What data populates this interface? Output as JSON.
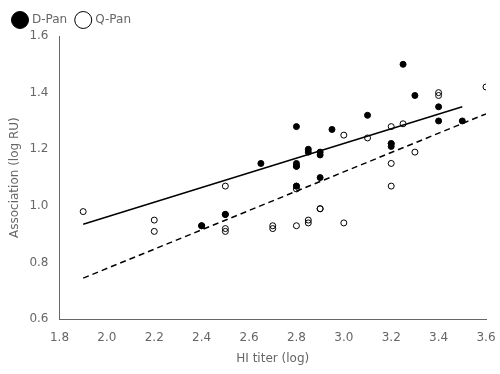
{
  "chart_data": {
    "type": "scatter",
    "xlabel": "HI titer (log)",
    "ylabel": "Association (log RU)",
    "xlim": [
      1.8,
      3.6
    ],
    "ylim": [
      0.6,
      1.6
    ],
    "xticks": [
      1.8,
      {
        "value": 2.0,
        "label": "2.0"
      },
      2.2,
      2.4,
      2.6,
      2.8,
      {
        "value": 3.0,
        "label": "3.0"
      },
      3.2,
      3.4,
      3.6
    ],
    "yticks": [
      0.6,
      0.8,
      {
        "value": 1.0,
        "label": "1.0"
      },
      1.2,
      1.4,
      1.6
    ],
    "grid": false,
    "legend": "upper left",
    "series": [
      {
        "name": "D-Pan",
        "color": "#000000",
        "marker": "circle",
        "x": [
          2.4,
          2.4,
          2.5,
          2.5,
          2.65,
          2.8,
          2.8,
          2.8,
          2.8,
          2.8,
          2.85,
          2.85,
          2.9,
          2.9,
          2.9,
          2.95,
          3.1,
          3.2,
          3.2,
          3.25,
          3.3,
          3.4,
          3.4,
          3.5
        ],
        "values": [
          0.93,
          0.93,
          0.97,
          0.97,
          1.15,
          1.28,
          1.15,
          1.14,
          1.14,
          1.07,
          1.2,
          1.19,
          1.18,
          1.19,
          1.1,
          1.27,
          1.32,
          1.22,
          1.21,
          1.5,
          1.39,
          1.35,
          1.3,
          1.3
        ]
      },
      {
        "name": "Q-Pan",
        "color": "#000000",
        "marker": "open_circle",
        "x": [
          1.9,
          2.2,
          2.2,
          2.5,
          2.5,
          2.5,
          2.7,
          2.7,
          2.8,
          2.8,
          2.8,
          2.85,
          2.85,
          2.9,
          2.9,
          3.0,
          3.0,
          3.1,
          3.2,
          3.2,
          3.2,
          3.2,
          3.25,
          3.3,
          3.4,
          3.4,
          3.6
        ],
        "values": [
          0.98,
          0.95,
          0.91,
          1.07,
          0.92,
          0.91,
          0.93,
          0.92,
          1.07,
          1.06,
          0.93,
          0.95,
          0.94,
          0.99,
          0.99,
          0.94,
          1.25,
          1.24,
          1.28,
          1.22,
          1.15,
          1.07,
          1.29,
          1.19,
          1.39,
          1.4,
          1.42
        ]
      },
      {
        "type": "line",
        "color": "#000000",
        "line_style": "solid",
        "x": [
          1.9,
          3.5
        ],
        "values": [
          0.935,
          1.35
        ]
      },
      {
        "type": "line",
        "color": "#000000",
        "line_style": "dashed",
        "x": [
          1.9,
          3.6
        ],
        "values": [
          0.745,
          1.325
        ]
      }
    ]
  }
}
